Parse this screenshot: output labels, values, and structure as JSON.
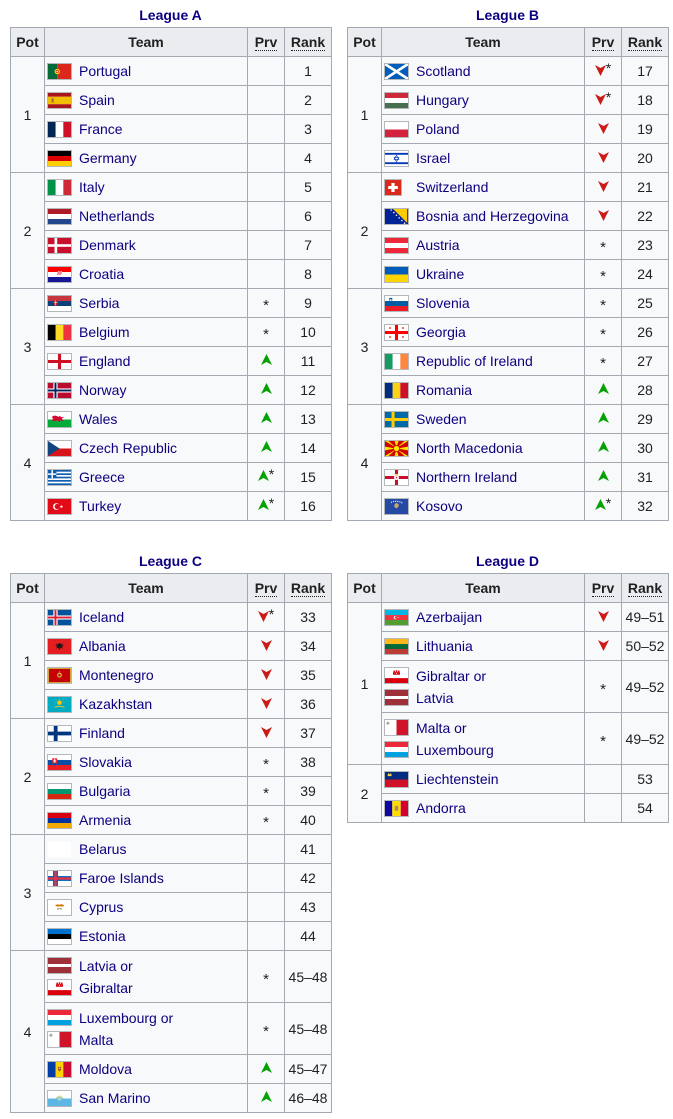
{
  "colors": {
    "link": "#0b0080",
    "increase": "#04a104",
    "decrease": "#cb1b17",
    "table_border": "#a2a9b1",
    "header_bg": "#eaecf0",
    "table_bg": "#f8f9fa"
  },
  "tables": [
    {
      "title": "League A",
      "headers": {
        "pot": "Pot",
        "team": "Team",
        "prv": "Prv",
        "rank": "Rank"
      },
      "pots": [
        {
          "pot": "1",
          "rows": [
            {
              "team_lines": [
                {
                  "flag": "portugal",
                  "label": "Portugal"
                }
              ],
              "prv": "",
              "rank": "1"
            },
            {
              "team_lines": [
                {
                  "flag": "spain",
                  "label": "Spain"
                }
              ],
              "prv": "",
              "rank": "2"
            },
            {
              "team_lines": [
                {
                  "flag": "france",
                  "label": "France"
                }
              ],
              "prv": "",
              "rank": "3"
            },
            {
              "team_lines": [
                {
                  "flag": "germany",
                  "label": "Germany"
                }
              ],
              "prv": "",
              "rank": "4"
            }
          ]
        },
        {
          "pot": "2",
          "rows": [
            {
              "team_lines": [
                {
                  "flag": "italy",
                  "label": "Italy"
                }
              ],
              "prv": "",
              "rank": "5"
            },
            {
              "team_lines": [
                {
                  "flag": "netherlands",
                  "label": "Netherlands"
                }
              ],
              "prv": "",
              "rank": "6"
            },
            {
              "team_lines": [
                {
                  "flag": "denmark",
                  "label": "Denmark"
                }
              ],
              "prv": "",
              "rank": "7"
            },
            {
              "team_lines": [
                {
                  "flag": "croatia",
                  "label": "Croatia"
                }
              ],
              "prv": "",
              "rank": "8"
            }
          ]
        },
        {
          "pot": "3",
          "rows": [
            {
              "team_lines": [
                {
                  "flag": "serbia",
                  "label": "Serbia"
                }
              ],
              "prv": "*",
              "rank": "9"
            },
            {
              "team_lines": [
                {
                  "flag": "belgium",
                  "label": "Belgium"
                }
              ],
              "prv": "*",
              "rank": "10"
            },
            {
              "team_lines": [
                {
                  "flag": "england",
                  "label": "England"
                }
              ],
              "prv": "up",
              "rank": "11"
            },
            {
              "team_lines": [
                {
                  "flag": "norway",
                  "label": "Norway"
                }
              ],
              "prv": "up",
              "rank": "12"
            }
          ]
        },
        {
          "pot": "4",
          "rows": [
            {
              "team_lines": [
                {
                  "flag": "wales",
                  "label": "Wales"
                }
              ],
              "prv": "up",
              "rank": "13"
            },
            {
              "team_lines": [
                {
                  "flag": "czech-republic",
                  "label": "Czech Republic"
                }
              ],
              "prv": "up",
              "rank": "14"
            },
            {
              "team_lines": [
                {
                  "flag": "greece",
                  "label": "Greece"
                }
              ],
              "prv": "up*",
              "rank": "15"
            },
            {
              "team_lines": [
                {
                  "flag": "turkey",
                  "label": "Turkey"
                }
              ],
              "prv": "up*",
              "rank": "16"
            }
          ]
        }
      ]
    },
    {
      "title": "League B",
      "headers": {
        "pot": "Pot",
        "team": "Team",
        "prv": "Prv",
        "rank": "Rank"
      },
      "pots": [
        {
          "pot": "1",
          "rows": [
            {
              "team_lines": [
                {
                  "flag": "scotland",
                  "label": "Scotland"
                }
              ],
              "prv": "down*",
              "rank": "17"
            },
            {
              "team_lines": [
                {
                  "flag": "hungary",
                  "label": "Hungary"
                }
              ],
              "prv": "down*",
              "rank": "18"
            },
            {
              "team_lines": [
                {
                  "flag": "poland",
                  "label": "Poland"
                }
              ],
              "prv": "down",
              "rank": "19"
            },
            {
              "team_lines": [
                {
                  "flag": "israel",
                  "label": "Israel"
                }
              ],
              "prv": "down",
              "rank": "20"
            }
          ]
        },
        {
          "pot": "2",
          "rows": [
            {
              "team_lines": [
                {
                  "flag": "switzerland",
                  "label": "Switzerland"
                }
              ],
              "prv": "down",
              "rank": "21"
            },
            {
              "team_lines": [
                {
                  "flag": "bosnia",
                  "label": "Bosnia and Herzegovina"
                }
              ],
              "prv": "down",
              "rank": "22"
            },
            {
              "team_lines": [
                {
                  "flag": "austria",
                  "label": "Austria"
                }
              ],
              "prv": "*",
              "rank": "23"
            },
            {
              "team_lines": [
                {
                  "flag": "ukraine",
                  "label": "Ukraine"
                }
              ],
              "prv": "*",
              "rank": "24"
            }
          ]
        },
        {
          "pot": "3",
          "rows": [
            {
              "team_lines": [
                {
                  "flag": "slovenia",
                  "label": "Slovenia"
                }
              ],
              "prv": "*",
              "rank": "25"
            },
            {
              "team_lines": [
                {
                  "flag": "georgia",
                  "label": "Georgia"
                }
              ],
              "prv": "*",
              "rank": "26"
            },
            {
              "team_lines": [
                {
                  "flag": "ireland",
                  "label": "Republic of Ireland"
                }
              ],
              "prv": "*",
              "rank": "27"
            },
            {
              "team_lines": [
                {
                  "flag": "romania",
                  "label": "Romania"
                }
              ],
              "prv": "up",
              "rank": "28"
            }
          ]
        },
        {
          "pot": "4",
          "rows": [
            {
              "team_lines": [
                {
                  "flag": "sweden",
                  "label": "Sweden"
                }
              ],
              "prv": "up",
              "rank": "29"
            },
            {
              "team_lines": [
                {
                  "flag": "north-macedonia",
                  "label": "North Macedonia"
                }
              ],
              "prv": "up",
              "rank": "30"
            },
            {
              "team_lines": [
                {
                  "flag": "northern-ireland",
                  "label": "Northern Ireland"
                }
              ],
              "prv": "up",
              "rank": "31"
            },
            {
              "team_lines": [
                {
                  "flag": "kosovo",
                  "label": "Kosovo"
                }
              ],
              "prv": "up*",
              "rank": "32"
            }
          ]
        }
      ]
    },
    {
      "title": "League C",
      "headers": {
        "pot": "Pot",
        "team": "Team",
        "prv": "Prv",
        "rank": "Rank"
      },
      "pots": [
        {
          "pot": "1",
          "rows": [
            {
              "team_lines": [
                {
                  "flag": "iceland",
                  "label": "Iceland"
                }
              ],
              "prv": "down*",
              "rank": "33"
            },
            {
              "team_lines": [
                {
                  "flag": "albania",
                  "label": "Albania"
                }
              ],
              "prv": "down",
              "rank": "34"
            },
            {
              "team_lines": [
                {
                  "flag": "montenegro",
                  "label": "Montenegro"
                }
              ],
              "prv": "down",
              "rank": "35"
            },
            {
              "team_lines": [
                {
                  "flag": "kazakhstan",
                  "label": "Kazakhstan"
                }
              ],
              "prv": "down",
              "rank": "36"
            }
          ]
        },
        {
          "pot": "2",
          "rows": [
            {
              "team_lines": [
                {
                  "flag": "finland",
                  "label": "Finland"
                }
              ],
              "prv": "down",
              "rank": "37"
            },
            {
              "team_lines": [
                {
                  "flag": "slovakia",
                  "label": "Slovakia"
                }
              ],
              "prv": "*",
              "rank": "38"
            },
            {
              "team_lines": [
                {
                  "flag": "bulgaria",
                  "label": "Bulgaria"
                }
              ],
              "prv": "*",
              "rank": "39"
            },
            {
              "team_lines": [
                {
                  "flag": "armenia",
                  "label": "Armenia"
                }
              ],
              "prv": "*",
              "rank": "40"
            }
          ]
        },
        {
          "pot": "3",
          "rows": [
            {
              "team_lines": [
                {
                  "flag": "belarus",
                  "label": "Belarus"
                }
              ],
              "prv": "",
              "rank": "41"
            },
            {
              "team_lines": [
                {
                  "flag": "faroe-islands",
                  "label": "Faroe Islands"
                }
              ],
              "prv": "",
              "rank": "42"
            },
            {
              "team_lines": [
                {
                  "flag": "cyprus",
                  "label": "Cyprus"
                }
              ],
              "prv": "",
              "rank": "43"
            },
            {
              "team_lines": [
                {
                  "flag": "estonia",
                  "label": "Estonia"
                }
              ],
              "prv": "",
              "rank": "44"
            }
          ]
        },
        {
          "pot": "4",
          "rows": [
            {
              "team_lines": [
                {
                  "flag": "latvia",
                  "label": "Latvia or"
                },
                {
                  "flag": "gibraltar",
                  "label": "Gibraltar"
                }
              ],
              "prv": "*",
              "rank": "45–48"
            },
            {
              "team_lines": [
                {
                  "flag": "luxembourg",
                  "label": "Luxembourg or"
                },
                {
                  "flag": "malta",
                  "label": "Malta"
                }
              ],
              "prv": "*",
              "rank": "45–48"
            },
            {
              "team_lines": [
                {
                  "flag": "moldova",
                  "label": "Moldova"
                }
              ],
              "prv": "up",
              "rank": "45–47"
            },
            {
              "team_lines": [
                {
                  "flag": "san-marino",
                  "label": "San Marino"
                }
              ],
              "prv": "up",
              "rank": "46–48"
            }
          ]
        }
      ]
    },
    {
      "title": "League D",
      "headers": {
        "pot": "Pot",
        "team": "Team",
        "prv": "Prv",
        "rank": "Rank"
      },
      "pots": [
        {
          "pot": "1",
          "rows": [
            {
              "team_lines": [
                {
                  "flag": "azerbaijan",
                  "label": "Azerbaijan"
                }
              ],
              "prv": "down",
              "rank": "49–51"
            },
            {
              "team_lines": [
                {
                  "flag": "lithuania",
                  "label": "Lithuania"
                }
              ],
              "prv": "down",
              "rank": "50–52"
            },
            {
              "team_lines": [
                {
                  "flag": "gibraltar",
                  "label": "Gibraltar or"
                },
                {
                  "flag": "latvia",
                  "label": "Latvia"
                }
              ],
              "prv": "*",
              "rank": "49–52"
            },
            {
              "team_lines": [
                {
                  "flag": "malta",
                  "label": "Malta or"
                },
                {
                  "flag": "luxembourg",
                  "label": "Luxembourg"
                }
              ],
              "prv": "*",
              "rank": "49–52"
            }
          ]
        },
        {
          "pot": "2",
          "rows": [
            {
              "team_lines": [
                {
                  "flag": "liechtenstein",
                  "label": "Liechtenstein"
                }
              ],
              "prv": "",
              "rank": "53"
            },
            {
              "team_lines": [
                {
                  "flag": "andorra",
                  "label": "Andorra"
                }
              ],
              "prv": "",
              "rank": "54"
            }
          ]
        }
      ]
    }
  ]
}
